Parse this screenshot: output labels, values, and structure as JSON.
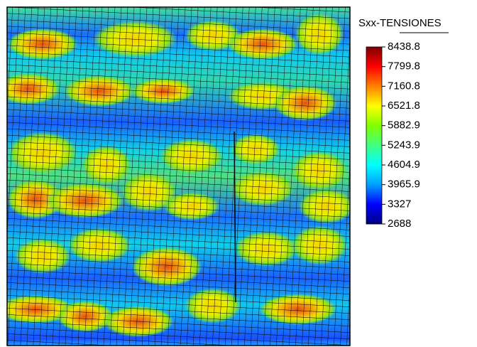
{
  "chart_data": {
    "type": "contour",
    "colorbar_title": "Sxx-TENSIONES",
    "clim": [
      2688,
      8438.8
    ],
    "cticks": [
      8438.8,
      7799.8,
      7160.8,
      6521.8,
      5882.9,
      5243.9,
      4604.9,
      3965.9,
      3327,
      2688
    ],
    "colormap": [
      "#00007f",
      "#0000ff",
      "#00a0ff",
      "#00ffff",
      "#40ff80",
      "#80ff00",
      "#ffff00",
      "#ff8000",
      "#ff0000",
      "#7f0000"
    ],
    "mesh": true
  }
}
